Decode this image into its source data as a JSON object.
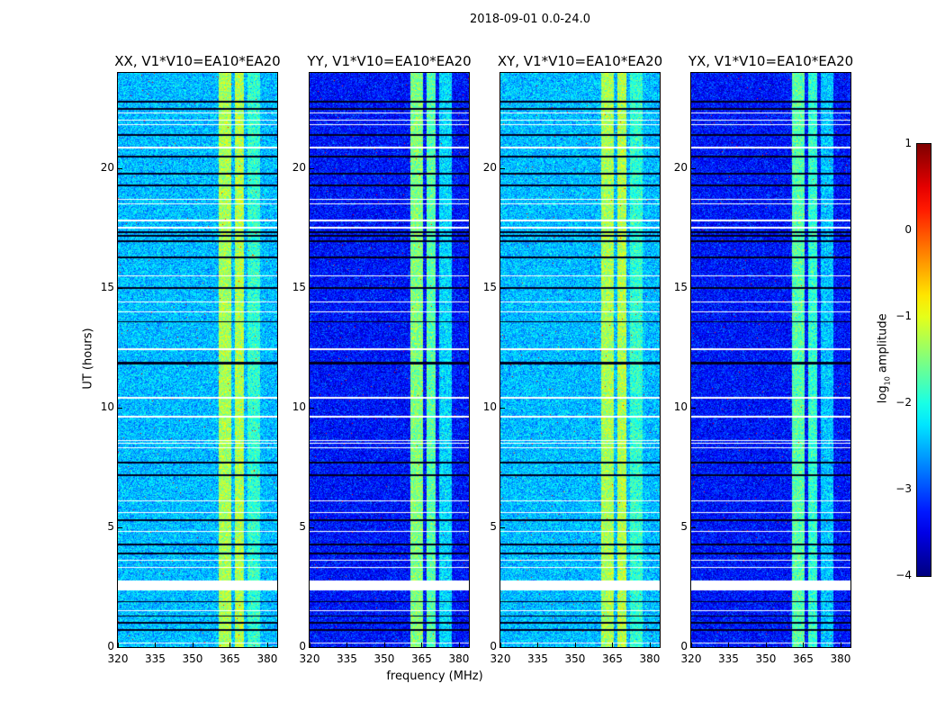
{
  "suptitle": "2018-09-01 0.0-24.0",
  "chart_data": [
    {
      "type": "heatmap",
      "title": "XX, V1*V10=EA10*EA20",
      "xlabel": "frequency (MHz)",
      "ylabel": "UT (hours)",
      "xlim": [
        320,
        384
      ],
      "ylim": [
        0,
        24
      ],
      "xticks": [
        320,
        335,
        350,
        365,
        380
      ],
      "yticks": [
        0,
        5,
        10,
        15,
        20
      ],
      "background_log_amp": -2.45,
      "band_log_amp": [
        {
          "from": 360.5,
          "to": 365.5,
          "level": -1.3
        },
        {
          "from": 367,
          "to": 370.5,
          "level": -1.25
        },
        {
          "from": 372,
          "to": 377,
          "level": -1.9
        }
      ]
    },
    {
      "type": "heatmap",
      "title": "YY, V1*V10=EA10*EA20",
      "xlabel": "frequency (MHz)",
      "ylabel": "",
      "xlim": [
        320,
        384
      ],
      "ylim": [
        0,
        24
      ],
      "xticks": [
        320,
        335,
        350,
        365,
        380
      ],
      "yticks": [
        0,
        5,
        10,
        15,
        20
      ],
      "background_log_amp": -3.3,
      "band_log_amp": [
        {
          "from": 360.5,
          "to": 365.5,
          "level": -1.5
        },
        {
          "from": 367,
          "to": 370.5,
          "level": -1.7
        },
        {
          "from": 372,
          "to": 377,
          "level": -2.3
        }
      ]
    },
    {
      "type": "heatmap",
      "title": "XY, V1*V10=EA10*EA20",
      "xlabel": "frequency (MHz)",
      "ylabel": "",
      "xlim": [
        320,
        384
      ],
      "ylim": [
        0,
        24
      ],
      "xticks": [
        320,
        335,
        350,
        365,
        380
      ],
      "yticks": [
        0,
        5,
        10,
        15,
        20
      ],
      "background_log_amp": -2.45,
      "band_log_amp": [
        {
          "from": 360.5,
          "to": 365.5,
          "level": -1.3
        },
        {
          "from": 367,
          "to": 370.5,
          "level": -1.25
        },
        {
          "from": 372,
          "to": 377,
          "level": -1.9
        }
      ]
    },
    {
      "type": "heatmap",
      "title": "YX, V1*V10=EA10*EA20",
      "xlabel": "frequency (MHz)",
      "ylabel": "",
      "xlim": [
        320,
        384
      ],
      "ylim": [
        0,
        24
      ],
      "xticks": [
        320,
        335,
        350,
        365,
        380
      ],
      "yticks": [
        0,
        5,
        10,
        15,
        20
      ],
      "background_log_amp": -3.3,
      "band_log_amp": [
        {
          "from": 360.5,
          "to": 365.5,
          "level": -1.7
        },
        {
          "from": 367,
          "to": 370.5,
          "level": -1.9
        },
        {
          "from": 372,
          "to": 377,
          "level": -2.4
        }
      ]
    }
  ],
  "flagged_hours": [
    [
      2.36,
      2.78
    ],
    [
      0.15,
      0.2
    ],
    [
      1.5,
      1.55
    ],
    [
      3.3,
      3.35
    ],
    [
      3.6,
      3.65
    ],
    [
      4.8,
      4.85
    ],
    [
      5.6,
      5.65
    ],
    [
      6.1,
      6.15
    ],
    [
      8.3,
      8.35
    ],
    [
      8.5,
      8.55
    ],
    [
      8.6,
      8.65
    ],
    [
      9.6,
      9.65
    ],
    [
      10.4,
      10.45
    ],
    [
      12.4,
      12.5
    ],
    [
      14.0,
      14.05
    ],
    [
      14.4,
      14.45
    ],
    [
      15.5,
      15.55
    ],
    [
      17.5,
      17.55
    ],
    [
      17.8,
      17.85
    ],
    [
      18.5,
      18.55
    ],
    [
      18.7,
      18.75
    ],
    [
      20.85,
      20.9
    ],
    [
      21.8,
      21.85
    ],
    [
      22.0,
      22.05
    ],
    [
      22.3,
      22.35
    ]
  ],
  "dropout_hours": [
    0.7,
    1.0,
    1.3,
    1.9,
    3.9,
    4.3,
    5.3,
    7.2,
    7.7,
    11.85,
    11.9,
    13.6,
    15.0,
    16.3,
    16.95,
    17.2,
    17.35,
    19.3,
    19.8,
    20.5,
    21.4,
    22.5,
    22.8
  ],
  "colorbar": {
    "label_main": "log",
    "label_sub": "10",
    "label_tail": " amplitude",
    "range": [
      -4,
      1
    ],
    "ticks": [
      "−4",
      "−3",
      "−2",
      "−1",
      "0",
      "1"
    ]
  }
}
